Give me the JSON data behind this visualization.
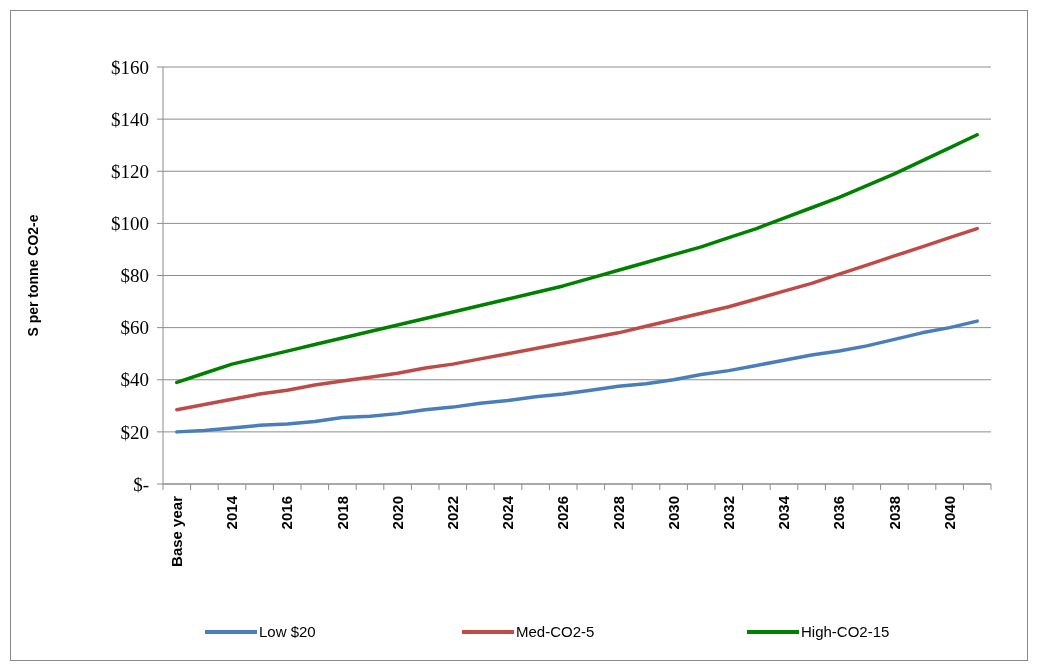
{
  "chart_data": {
    "type": "line",
    "ylabel": "S per tonne CO2-e",
    "categories": [
      "Base year",
      null,
      "2014",
      null,
      "2016",
      null,
      "2018",
      null,
      "2020",
      null,
      "2022",
      null,
      "2024",
      null,
      "2026",
      null,
      "2028",
      null,
      "2030",
      null,
      "2032",
      null,
      "2034",
      null,
      "2036",
      null,
      "2038",
      null,
      "2040",
      null
    ],
    "series": [
      {
        "name": "Low $20",
        "color": "#4a7ebb",
        "values": [
          20,
          20.5,
          21.5,
          22.5,
          23,
          24,
          25.5,
          26,
          27,
          28.5,
          29.5,
          31,
          32,
          33.5,
          34.5,
          36,
          37.5,
          38.5,
          40,
          42,
          43.5,
          45.5,
          47.5,
          49.5,
          51,
          53,
          55.5,
          58,
          60,
          62.5
        ]
      },
      {
        "name": "Med-CO2-5",
        "color": "#be4b48",
        "values": [
          28.5,
          30.5,
          32.5,
          34.5,
          36,
          38,
          39.5,
          41,
          42.5,
          44.5,
          46,
          48,
          50,
          52,
          54,
          56,
          58,
          60.5,
          63,
          65.5,
          68,
          71,
          74,
          77,
          80.5,
          84,
          87.5,
          91,
          94.5,
          98
        ]
      },
      {
        "name": "High-CO2-15",
        "color": "#008000",
        "values": [
          39,
          42.5,
          46,
          48.5,
          51,
          53.5,
          56,
          58.5,
          61,
          63.5,
          66,
          68.5,
          71,
          73.5,
          76,
          79,
          82,
          85,
          88,
          91,
          94.5,
          98,
          102,
          106,
          110,
          114.5,
          119,
          124,
          129,
          134
        ]
      }
    ],
    "ylim": [
      0,
      160
    ],
    "yticks": [
      {
        "value": 0,
        "label": "$-"
      },
      {
        "value": 20,
        "label": "$20"
      },
      {
        "value": 40,
        "label": "$40"
      },
      {
        "value": 60,
        "label": "$60"
      },
      {
        "value": 80,
        "label": "$80"
      },
      {
        "value": 100,
        "label": "$100"
      },
      {
        "value": 120,
        "label": "$120"
      },
      {
        "value": 140,
        "label": "$140"
      },
      {
        "value": 160,
        "label": "$160"
      }
    ],
    "grid": "y",
    "legend": "bottom",
    "marker": "none",
    "line_style": "solid"
  }
}
